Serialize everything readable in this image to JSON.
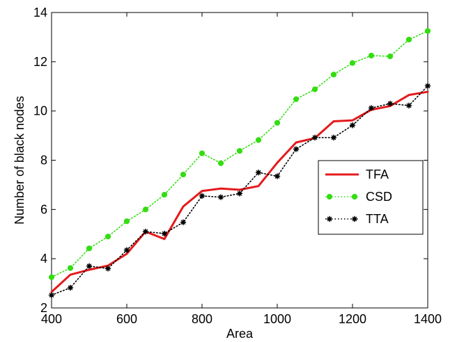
{
  "chart_data": {
    "type": "line",
    "xlabel": "Area",
    "ylabel": "Number of black nodes",
    "xlim": [
      400,
      1400
    ],
    "ylim": [
      2,
      14
    ],
    "xticks": [
      400,
      600,
      800,
      1000,
      1200,
      1400
    ],
    "yticks": [
      2,
      4,
      6,
      8,
      10,
      12,
      14
    ],
    "grid": false,
    "legend_position": "right",
    "x": [
      400,
      450,
      500,
      550,
      600,
      650,
      700,
      750,
      800,
      850,
      900,
      950,
      1000,
      1050,
      1100,
      1150,
      1200,
      1250,
      1300,
      1350,
      1400
    ],
    "series": [
      {
        "name": "TFA",
        "color": "#e41a1c",
        "style": "solid",
        "marker": "none",
        "values": [
          2.65,
          3.35,
          3.55,
          3.72,
          4.2,
          5.1,
          4.8,
          6.12,
          6.75,
          6.85,
          6.8,
          6.95,
          7.9,
          8.72,
          8.9,
          9.58,
          9.62,
          10.05,
          10.2,
          10.65,
          10.78
        ]
      },
      {
        "name": "CSD",
        "color": "#33dd11",
        "style": "dotted",
        "marker": "circle",
        "values": [
          3.25,
          3.62,
          4.42,
          4.9,
          5.52,
          6.0,
          6.6,
          7.42,
          8.28,
          7.88,
          8.38,
          8.82,
          9.52,
          10.48,
          10.88,
          11.48,
          11.95,
          12.25,
          12.22,
          12.9,
          13.25
        ]
      },
      {
        "name": "TTA",
        "color": "#000000",
        "style": "dotted",
        "marker": "star",
        "values": [
          2.52,
          2.82,
          3.7,
          3.6,
          4.35,
          5.1,
          5.02,
          5.48,
          6.55,
          6.5,
          6.65,
          7.5,
          7.35,
          8.45,
          8.92,
          8.92,
          9.42,
          10.12,
          10.3,
          10.22,
          11.02
        ]
      }
    ]
  }
}
